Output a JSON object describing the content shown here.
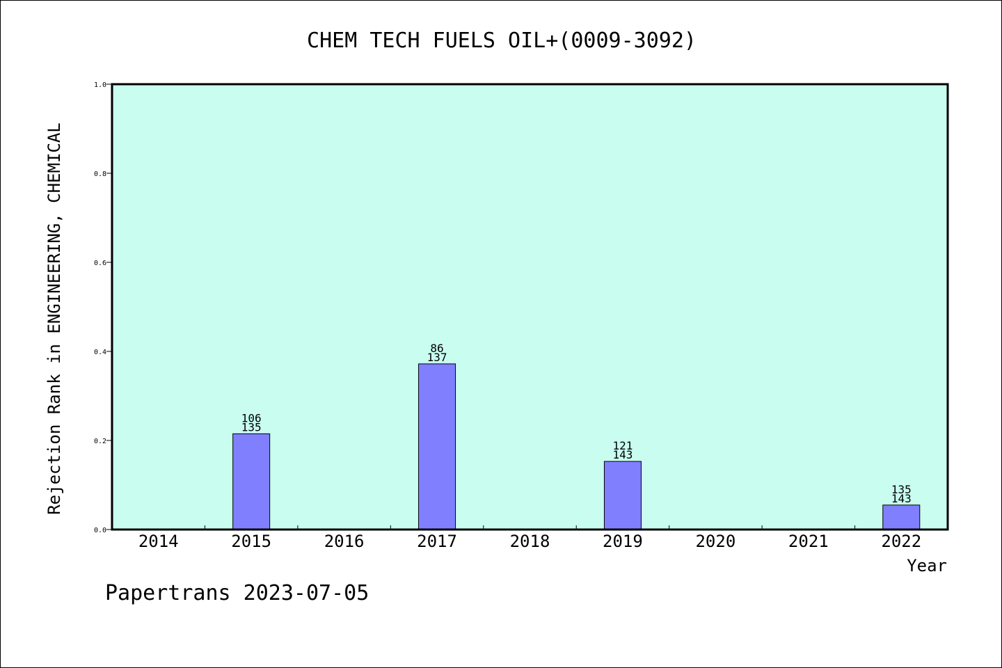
{
  "colors": {
    "plot_background": "#c8fdf0",
    "bar_fill": "#8080ff",
    "bar_stroke": "#000000",
    "text": "#000000"
  },
  "chart_data": {
    "type": "bar",
    "title": "CHEM TECH FUELS OIL+(0009-3092)",
    "xlabel": "Year",
    "ylabel": "Rejection Rank in ENGINEERING, CHEMICAL",
    "categories": [
      "2014",
      "2015",
      "2016",
      "2017",
      "2018",
      "2019",
      "2020",
      "2021",
      "2022"
    ],
    "values": [
      null,
      0.215,
      null,
      0.372,
      null,
      0.153,
      null,
      null,
      0.055
    ],
    "bar_labels_top": [
      "",
      "106",
      "",
      "86",
      "",
      "121",
      "",
      "",
      "135"
    ],
    "bar_labels_bottom": [
      "",
      "135",
      "",
      "137",
      "",
      "143",
      "",
      "",
      "143"
    ],
    "ylim": [
      0,
      1.0
    ],
    "yticks": [
      "0.0",
      "0.2",
      "0.4",
      "0.6",
      "0.8",
      "1.0"
    ],
    "grid": false,
    "legend": "none"
  },
  "footer": {
    "stamp": "Papertrans 2023-07-05"
  }
}
